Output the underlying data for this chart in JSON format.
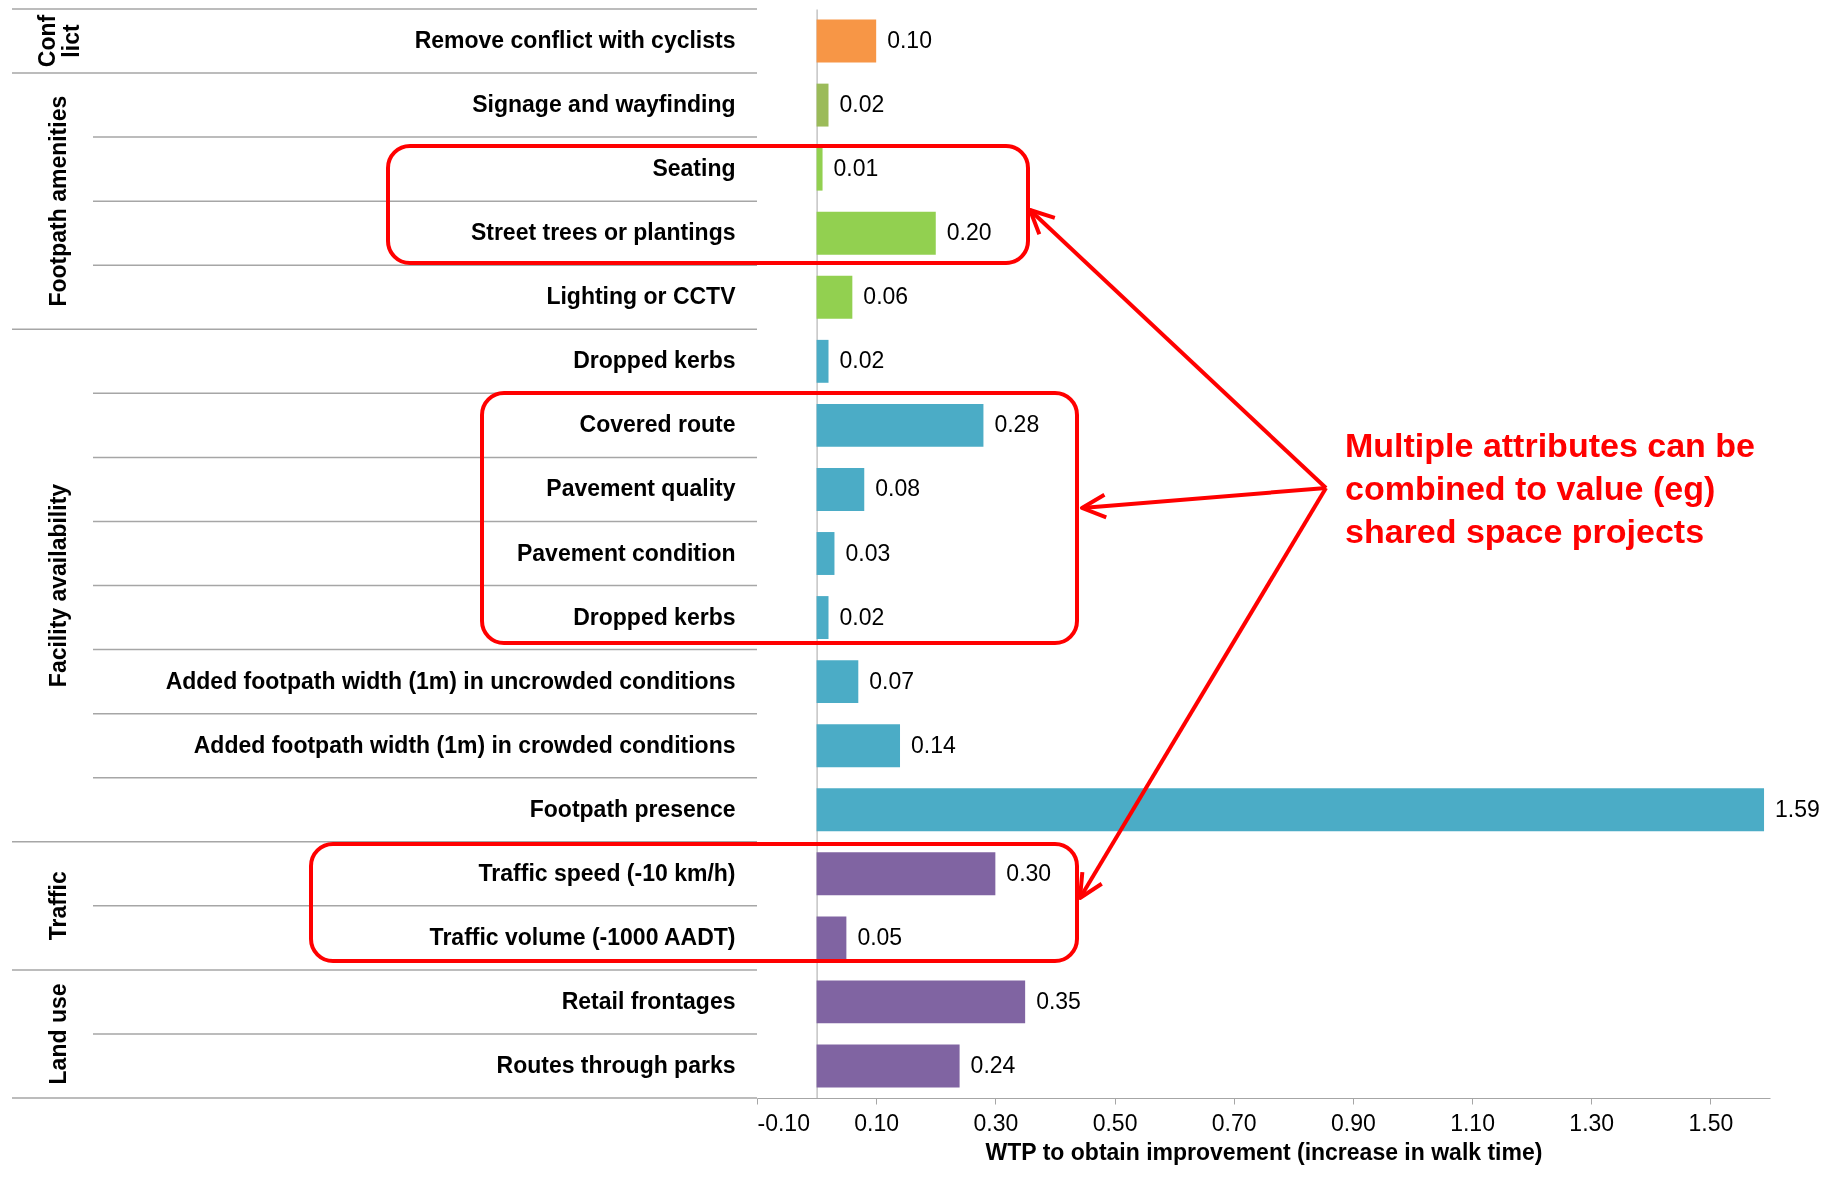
{
  "chart_data": {
    "type": "bar",
    "orientation": "horizontal",
    "categories": [
      "Remove conflict with cyclists",
      "Signage and wayfinding",
      "Seating",
      "Street trees or plantings",
      "Lighting or CCTV",
      "Dropped kerbs",
      "Covered route",
      "Pavement quality",
      "Pavement condition",
      "Dropped kerbs",
      "Added footpath width (1m) in uncrowded conditions",
      "Added footpath width (1m) in crowded conditions",
      "Footpath presence",
      "Traffic speed (-10 km/h)",
      "Traffic volume (-1000 AADT)",
      "Retail frontages",
      "Routes through parks"
    ],
    "values": [
      0.1,
      0.02,
      0.01,
      0.2,
      0.06,
      0.02,
      0.28,
      0.08,
      0.03,
      0.02,
      0.07,
      0.14,
      1.59,
      0.3,
      0.05,
      0.35,
      0.24
    ],
    "value_labels": [
      "0.10",
      "0.02",
      "0.01",
      "0.20",
      "0.06",
      "0.02",
      "0.28",
      "0.08",
      "0.03",
      "0.02",
      "0.07",
      "0.14",
      "1.59",
      "0.30",
      "0.05",
      "0.35",
      "0.24"
    ],
    "colors": [
      "#f79646",
      "#9bbb59",
      "#92d050",
      "#92d050",
      "#92d050",
      "#4bacc6",
      "#4bacc6",
      "#4bacc6",
      "#4bacc6",
      "#4bacc6",
      "#4bacc6",
      "#4bacc6",
      "#4bacc6",
      "#8064a2",
      "#8064a2",
      "#8064a2",
      "#8064a2"
    ],
    "xlim": [
      -0.1,
      1.6
    ],
    "xticks": [
      {
        "value": -0.1,
        "label": "-0.10"
      },
      {
        "value": 0.1,
        "label": "0.10"
      },
      {
        "value": 0.3,
        "label": "0.30"
      },
      {
        "value": 0.5,
        "label": "0.50"
      },
      {
        "value": 0.7,
        "label": "0.70"
      },
      {
        "value": 0.9,
        "label": "0.90"
      },
      {
        "value": 1.1,
        "label": "1.10"
      },
      {
        "value": 1.3,
        "label": "1.30"
      },
      {
        "value": 1.5,
        "label": "1.50"
      }
    ],
    "xlabel": "WTP to obtain improvement (increase in walk time)",
    "annotations": [
      "Conflict",
      "Footpath amenities",
      "Facility availability",
      "Traffic",
      "Land use",
      "Multiple attributes can be combined to value (eg) shared space projects"
    ],
    "legend": false
  }
}
